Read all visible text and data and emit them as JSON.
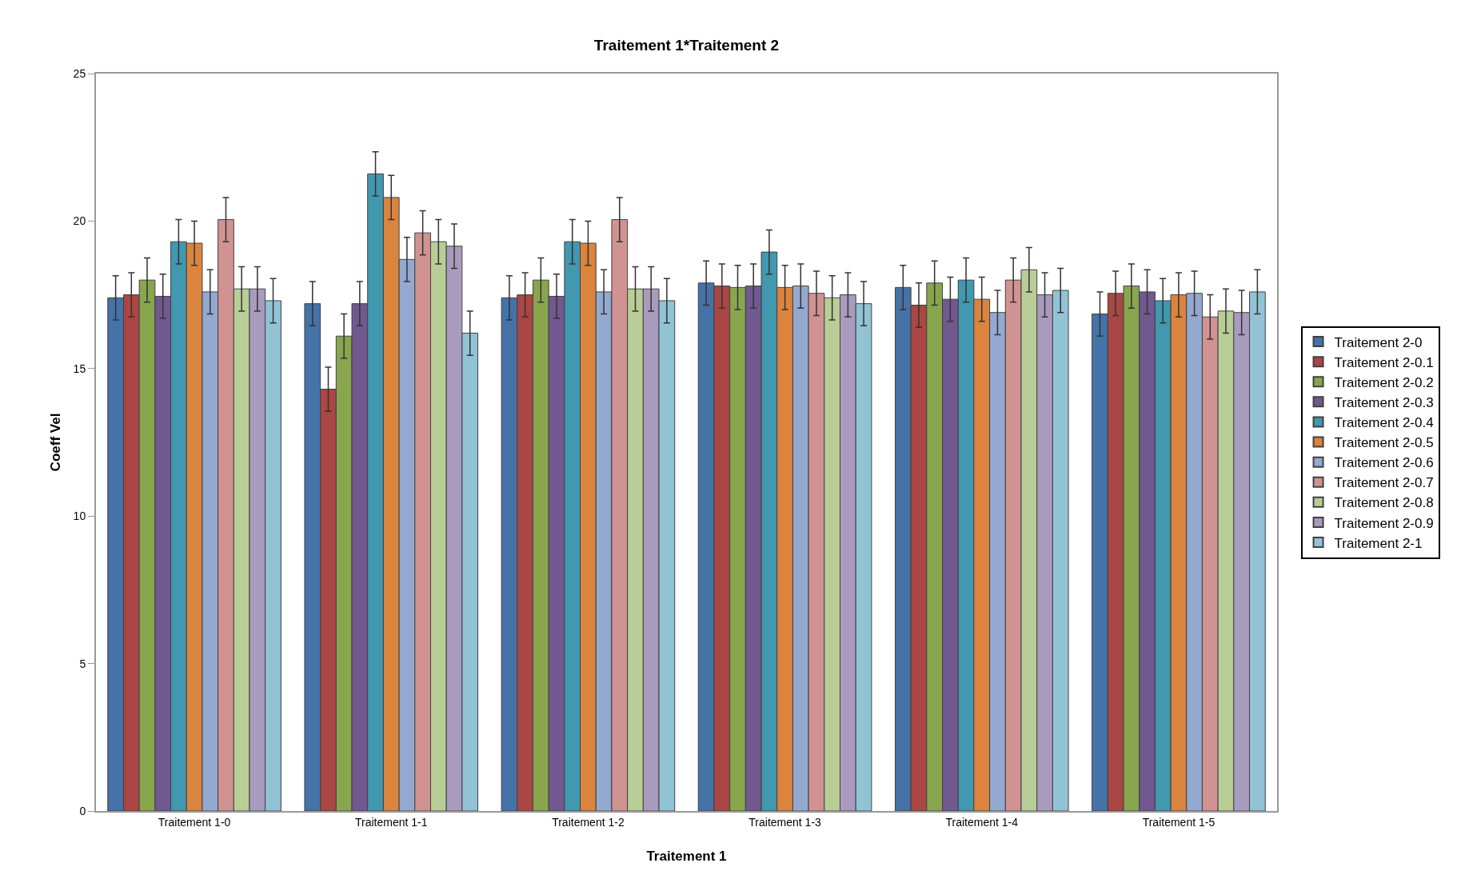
{
  "chart_data": {
    "type": "bar",
    "title": "Traitement 1*Traitement 2",
    "xlabel": "Traitement 1",
    "ylabel": "Coeff Vel",
    "categories": [
      "Traitement 1-0",
      "Traitement 1-1",
      "Traitement 1-2",
      "Traitement 1-3",
      "Traitement 1-4",
      "Traitement 1-5"
    ],
    "ylim": [
      0,
      25
    ],
    "yticks": [
      0,
      5,
      10,
      15,
      20,
      25
    ],
    "grid": false,
    "legend": "right",
    "series": [
      {
        "name": "Traitement 2-0",
        "color": "#4572a7",
        "values": [
          17.4,
          17.2,
          17.4,
          17.9,
          17.75,
          16.85
        ],
        "errors": [
          0.75,
          0.75,
          0.75,
          0.75,
          0.75,
          0.75
        ]
      },
      {
        "name": "Traitement 2-0.1",
        "color": "#aa4643",
        "values": [
          17.5,
          14.3,
          17.5,
          17.8,
          17.15,
          17.55
        ],
        "errors": [
          0.75,
          0.75,
          0.75,
          0.75,
          0.75,
          0.75
        ]
      },
      {
        "name": "Traitement 2-0.2",
        "color": "#89a54e",
        "values": [
          18.0,
          16.1,
          18.0,
          17.75,
          17.9,
          17.8
        ],
        "errors": [
          0.75,
          0.75,
          0.75,
          0.75,
          0.75,
          0.75
        ]
      },
      {
        "name": "Traitement 2-0.3",
        "color": "#71588f",
        "values": [
          17.45,
          17.2,
          17.45,
          17.8,
          17.35,
          17.6
        ],
        "errors": [
          0.75,
          0.75,
          0.75,
          0.75,
          0.75,
          0.75
        ]
      },
      {
        "name": "Traitement 2-0.4",
        "color": "#4198af",
        "values": [
          19.3,
          21.6,
          19.3,
          18.95,
          18.0,
          17.3
        ],
        "errors": [
          0.75,
          0.75,
          0.75,
          0.75,
          0.75,
          0.75
        ]
      },
      {
        "name": "Traitement 2-0.5",
        "color": "#db843d",
        "values": [
          19.25,
          20.8,
          19.25,
          17.75,
          17.35,
          17.5
        ],
        "errors": [
          0.75,
          0.75,
          0.75,
          0.75,
          0.75,
          0.75
        ]
      },
      {
        "name": "Traitement 2-0.6",
        "color": "#93a9cf",
        "values": [
          17.6,
          18.7,
          17.6,
          17.8,
          16.9,
          17.55
        ],
        "errors": [
          0.75,
          0.75,
          0.75,
          0.75,
          0.75,
          0.75
        ]
      },
      {
        "name": "Traitement 2-0.7",
        "color": "#d19392",
        "values": [
          20.05,
          19.6,
          20.05,
          17.55,
          18.0,
          16.75
        ],
        "errors": [
          0.75,
          0.75,
          0.75,
          0.75,
          0.75,
          0.75
        ]
      },
      {
        "name": "Traitement 2-0.8",
        "color": "#b9cd96",
        "values": [
          17.7,
          19.3,
          17.7,
          17.4,
          18.35,
          16.95
        ],
        "errors": [
          0.75,
          0.75,
          0.75,
          0.75,
          0.75,
          0.75
        ]
      },
      {
        "name": "Traitement 2-0.9",
        "color": "#a99bbd",
        "values": [
          17.7,
          19.15,
          17.7,
          17.5,
          17.5,
          16.9
        ],
        "errors": [
          0.75,
          0.75,
          0.75,
          0.75,
          0.75,
          0.75
        ]
      },
      {
        "name": "Traitement 2-1",
        "color": "#91c3d5",
        "values": [
          17.3,
          16.2,
          17.3,
          17.2,
          17.65,
          17.6
        ],
        "errors": [
          0.75,
          0.75,
          0.75,
          0.75,
          0.75,
          0.75
        ]
      }
    ]
  }
}
